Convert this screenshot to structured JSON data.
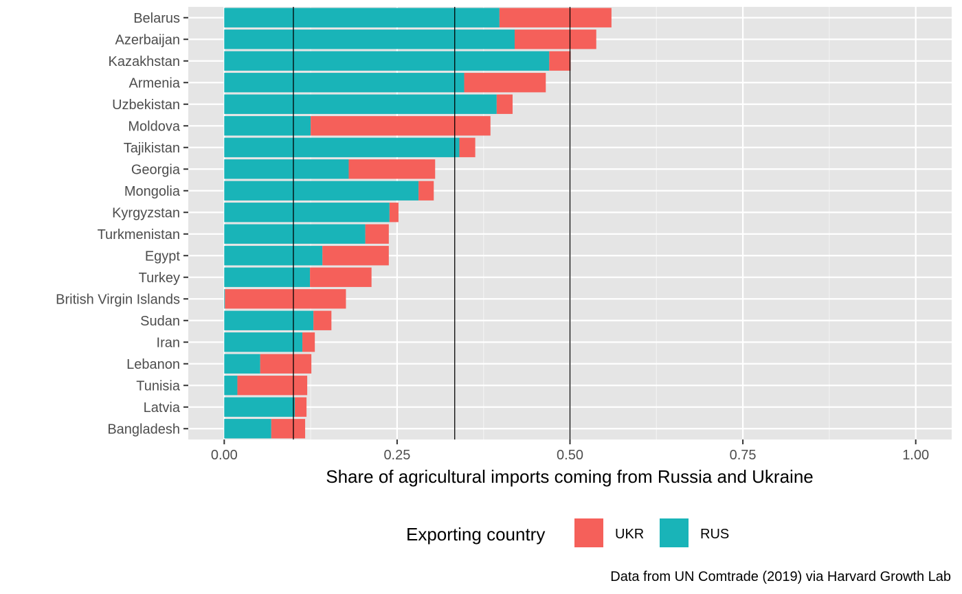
{
  "chart_data": {
    "type": "bar",
    "orientation": "horizontal",
    "stacked": true,
    "categories": [
      "Belarus",
      "Azerbaijan",
      "Kazakhstan",
      "Armenia",
      "Uzbekistan",
      "Moldova",
      "Tajikistan",
      "Georgia",
      "Mongolia",
      "Kyrgyzstan",
      "Turkmenistan",
      "Egypt",
      "Turkey",
      "British Virgin Islands",
      "Sudan",
      "Iran",
      "Lebanon",
      "Tunisia",
      "Latvia",
      "Bangladesh"
    ],
    "series": [
      {
        "name": "RUS",
        "color": "#19b4b8",
        "values": [
          0.398,
          0.42,
          0.47,
          0.347,
          0.394,
          0.125,
          0.34,
          0.18,
          0.281,
          0.239,
          0.204,
          0.142,
          0.124,
          0.001,
          0.129,
          0.113,
          0.052,
          0.019,
          0.102,
          0.068
        ]
      },
      {
        "name": "UKR",
        "color": "#f5605a",
        "values": [
          0.162,
          0.118,
          0.031,
          0.118,
          0.023,
          0.26,
          0.023,
          0.125,
          0.022,
          0.013,
          0.034,
          0.096,
          0.089,
          0.175,
          0.026,
          0.018,
          0.074,
          0.101,
          0.017,
          0.049
        ]
      }
    ],
    "xlabel": "Share of agricultural imports coming from Russia and Ukraine",
    "xlim": [
      -0.052,
      1.052
    ],
    "xticks": [
      "0.00",
      "0.25",
      "0.50",
      "0.75",
      "1.00"
    ],
    "xtick_values": [
      0,
      0.25,
      0.5,
      0.75,
      1.0
    ],
    "reference_lines": [
      0.1,
      0.3333,
      0.5
    ],
    "legend": {
      "title": "Exporting country",
      "position": "bottom",
      "entries": [
        "UKR",
        "RUS"
      ]
    },
    "caption": "Data from UN Comtrade (2019) via Harvard Growth Lab",
    "grid": true,
    "panel_background": "#e5e5e5"
  }
}
